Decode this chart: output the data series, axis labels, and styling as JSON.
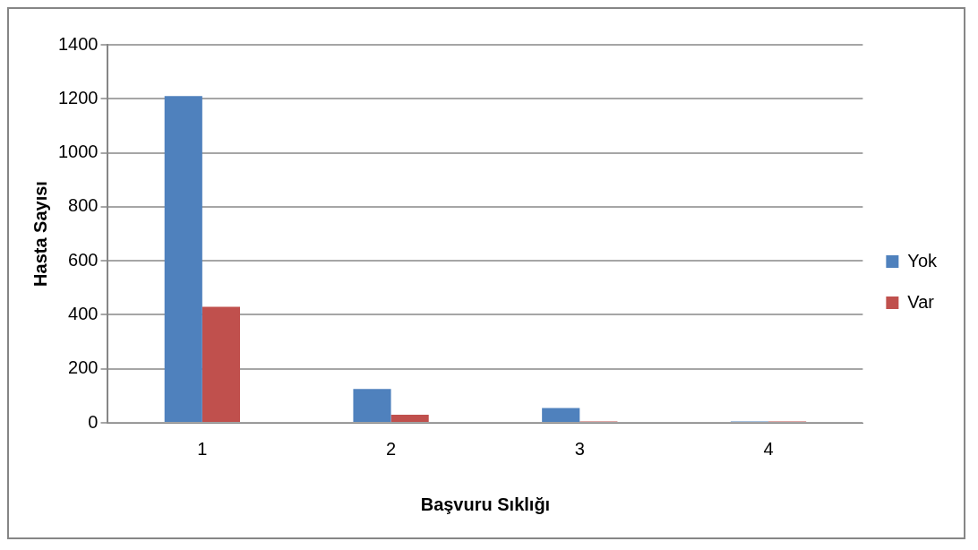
{
  "chart_data": {
    "type": "bar",
    "xlabel": "Başvuru Sıklığı",
    "ylabel": "Hasta Sayısı",
    "categories": [
      "1",
      "2",
      "3",
      "4"
    ],
    "series": [
      {
        "name": "Yok",
        "color": "#4f81bd",
        "values": [
          1210,
          125,
          55,
          5
        ]
      },
      {
        "name": "Var",
        "color": "#c0504d",
        "values": [
          430,
          30,
          5,
          5
        ]
      }
    ],
    "ylim": [
      0,
      1400
    ],
    "yticks": [
      0,
      200,
      400,
      600,
      800,
      1000,
      1200,
      1400
    ],
    "grid": "y",
    "legend": "right"
  }
}
